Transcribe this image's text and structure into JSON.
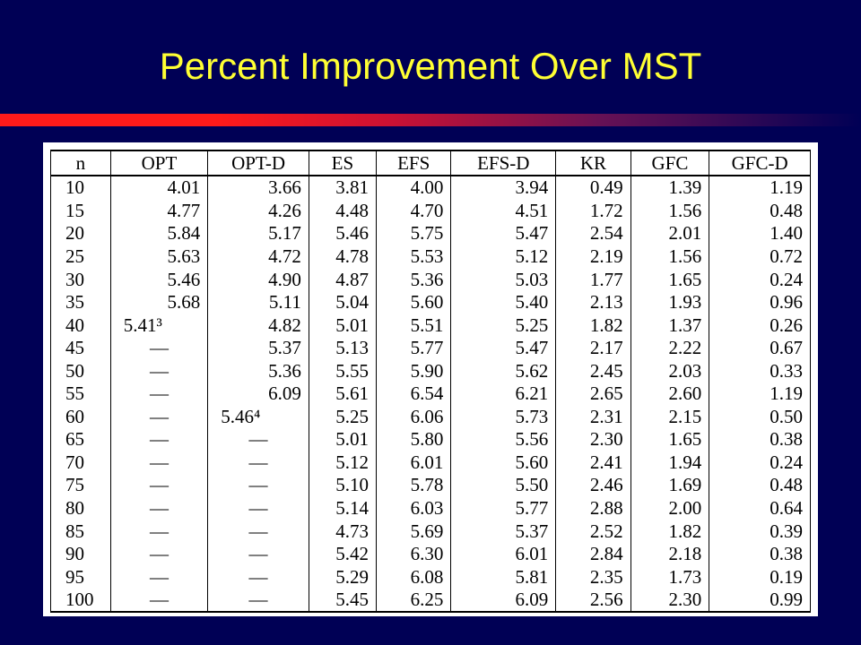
{
  "slide": {
    "title": "Percent Improvement Over MST",
    "colors": {
      "background": "#000055",
      "title": "#ffff33",
      "accent": "#ff1a1a"
    }
  },
  "table": {
    "headers": [
      "n",
      "OPT",
      "OPT-D",
      "ES",
      "EFS",
      "EFS-D",
      "KR",
      "GFC",
      "GFC-D"
    ],
    "rows": [
      [
        "10",
        "4.01",
        "3.66",
        "3.81",
        "4.00",
        "3.94",
        "0.49",
        "1.39",
        "1.19"
      ],
      [
        "15",
        "4.77",
        "4.26",
        "4.48",
        "4.70",
        "4.51",
        "1.72",
        "1.56",
        "0.48"
      ],
      [
        "20",
        "5.84",
        "5.17",
        "5.46",
        "5.75",
        "5.47",
        "2.54",
        "2.01",
        "1.40"
      ],
      [
        "25",
        "5.63",
        "4.72",
        "4.78",
        "5.53",
        "5.12",
        "2.19",
        "1.56",
        "0.72"
      ],
      [
        "30",
        "5.46",
        "4.90",
        "4.87",
        "5.36",
        "5.03",
        "1.77",
        "1.65",
        "0.24"
      ],
      [
        "35",
        "5.68",
        "5.11",
        "5.04",
        "5.60",
        "5.40",
        "2.13",
        "1.93",
        "0.96"
      ],
      [
        "40",
        "5.41³",
        "4.82",
        "5.01",
        "5.51",
        "5.25",
        "1.82",
        "1.37",
        "0.26"
      ],
      [
        "45",
        "—",
        "5.37",
        "5.13",
        "5.77",
        "5.47",
        "2.17",
        "2.22",
        "0.67"
      ],
      [
        "50",
        "—",
        "5.36",
        "5.55",
        "5.90",
        "5.62",
        "2.45",
        "2.03",
        "0.33"
      ],
      [
        "55",
        "—",
        "6.09",
        "5.61",
        "6.54",
        "6.21",
        "2.65",
        "2.60",
        "1.19"
      ],
      [
        "60",
        "—",
        "5.46⁴",
        "5.25",
        "6.06",
        "5.73",
        "2.31",
        "2.15",
        "0.50"
      ],
      [
        "65",
        "—",
        "—",
        "5.01",
        "5.80",
        "5.56",
        "2.30",
        "1.65",
        "0.38"
      ],
      [
        "70",
        "—",
        "—",
        "5.12",
        "6.01",
        "5.60",
        "2.41",
        "1.94",
        "0.24"
      ],
      [
        "75",
        "—",
        "—",
        "5.10",
        "5.78",
        "5.50",
        "2.46",
        "1.69",
        "0.48"
      ],
      [
        "80",
        "—",
        "—",
        "5.14",
        "6.03",
        "5.77",
        "2.88",
        "2.00",
        "0.64"
      ],
      [
        "85",
        "—",
        "—",
        "4.73",
        "5.69",
        "5.37",
        "2.52",
        "1.82",
        "0.39"
      ],
      [
        "90",
        "—",
        "—",
        "5.42",
        "6.30",
        "6.01",
        "2.84",
        "2.18",
        "0.38"
      ],
      [
        "95",
        "—",
        "—",
        "5.29",
        "6.08",
        "5.81",
        "2.35",
        "1.73",
        "0.19"
      ],
      [
        "100",
        "—",
        "—",
        "5.45",
        "6.25",
        "6.09",
        "2.56",
        "2.30",
        "0.99"
      ]
    ]
  }
}
